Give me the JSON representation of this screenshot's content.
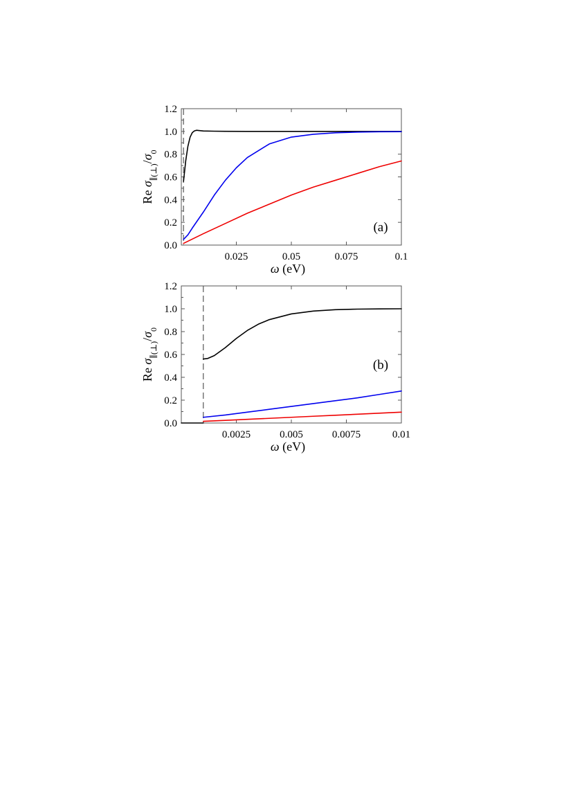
{
  "chart_data": [
    {
      "type": "line",
      "panel_label": "(a)",
      "xlabel": {
        "symbol": "ω",
        "unit": "(eV)"
      },
      "ylabel": {
        "prefix": "Re",
        "symbol": "σ",
        "sub": "∥(⊥)",
        "denom": "σ",
        "denom_sub": "0"
      },
      "xlim": [
        0,
        0.1
      ],
      "ylim": [
        0,
        1.2
      ],
      "xticks": [
        0.025,
        0.05,
        0.075,
        0.1
      ],
      "xtick_labels": [
        "0.025",
        "0.05",
        "0.075",
        "0.1"
      ],
      "yticks": [
        0,
        0.2,
        0.4,
        0.6,
        0.8,
        1.0,
        1.2
      ],
      "ytick_labels": [
        "0.0",
        "0.2",
        "0.4",
        "0.6",
        "0.8",
        "1.0",
        "1.2"
      ],
      "grid": false,
      "vline": {
        "x": 0.001,
        "style": "dashed",
        "color": "#555555"
      },
      "series": [
        {
          "color": "#000000",
          "x": [
            0.001,
            0.002,
            0.003,
            0.004,
            0.005,
            0.006,
            0.007,
            0.008,
            0.01,
            0.015,
            0.02,
            0.03,
            0.05,
            0.075,
            0.1
          ],
          "y": [
            0.56,
            0.74,
            0.87,
            0.95,
            0.99,
            1.005,
            1.01,
            1.008,
            1.004,
            1.002,
            1.001,
            1.0,
            1.0,
            1.0,
            1.0
          ]
        },
        {
          "color": "#0000ee",
          "x": [
            0.001,
            0.003,
            0.005,
            0.01,
            0.015,
            0.02,
            0.025,
            0.03,
            0.04,
            0.05,
            0.06,
            0.07,
            0.08,
            0.09,
            0.1
          ],
          "y": [
            0.05,
            0.09,
            0.15,
            0.29,
            0.44,
            0.57,
            0.68,
            0.77,
            0.89,
            0.95,
            0.975,
            0.988,
            0.994,
            0.997,
            0.998
          ]
        },
        {
          "color": "#ee0000",
          "x": [
            0.001,
            0.01,
            0.02,
            0.03,
            0.04,
            0.05,
            0.06,
            0.07,
            0.08,
            0.09,
            0.1
          ],
          "y": [
            0.015,
            0.1,
            0.19,
            0.28,
            0.36,
            0.44,
            0.51,
            0.57,
            0.63,
            0.69,
            0.74
          ]
        }
      ]
    },
    {
      "type": "line",
      "panel_label": "(b)",
      "xlabel": {
        "symbol": "ω",
        "unit": "(eV)"
      },
      "ylabel": {
        "prefix": "Re",
        "symbol": "σ",
        "sub": "∥(⊥)",
        "denom": "σ",
        "denom_sub": "0"
      },
      "xlim": [
        0,
        0.01
      ],
      "ylim": [
        0,
        1.2
      ],
      "xticks": [
        0.0025,
        0.005,
        0.0075,
        0.01
      ],
      "xtick_labels": [
        "0.0025",
        "0.005",
        "0.0075",
        "0.01"
      ],
      "yticks": [
        0,
        0.2,
        0.4,
        0.6,
        0.8,
        1.0,
        1.2
      ],
      "ytick_labels": [
        "0.0",
        "0.2",
        "0.4",
        "0.6",
        "0.8",
        "1.0",
        "1.2"
      ],
      "grid": false,
      "vline": {
        "x": 0.001,
        "style": "dashed",
        "color": "#555555"
      },
      "series": [
        {
          "color": "#000000",
          "x": [
            0,
            0.001
          ],
          "y": [
            0,
            0
          ]
        },
        {
          "color": "#000000",
          "x": [
            0.001,
            0.0012,
            0.0015,
            0.002,
            0.0025,
            0.003,
            0.0035,
            0.004,
            0.005,
            0.006,
            0.007,
            0.008,
            0.009,
            0.01
          ],
          "y": [
            0.56,
            0.565,
            0.59,
            0.66,
            0.74,
            0.81,
            0.865,
            0.905,
            0.955,
            0.98,
            0.992,
            0.997,
            0.999,
            1.0
          ]
        },
        {
          "color": "#0000ee",
          "x": [
            0.001,
            0.002,
            0.003,
            0.004,
            0.005,
            0.006,
            0.007,
            0.008,
            0.009,
            0.01
          ],
          "y": [
            0.05,
            0.07,
            0.095,
            0.12,
            0.145,
            0.17,
            0.195,
            0.22,
            0.25,
            0.28
          ]
        },
        {
          "color": "#ee0000",
          "x": [
            0.001,
            0.002,
            0.003,
            0.004,
            0.005,
            0.006,
            0.007,
            0.008,
            0.009,
            0.01
          ],
          "y": [
            0.015,
            0.023,
            0.032,
            0.041,
            0.05,
            0.059,
            0.068,
            0.077,
            0.086,
            0.095
          ]
        }
      ]
    }
  ]
}
